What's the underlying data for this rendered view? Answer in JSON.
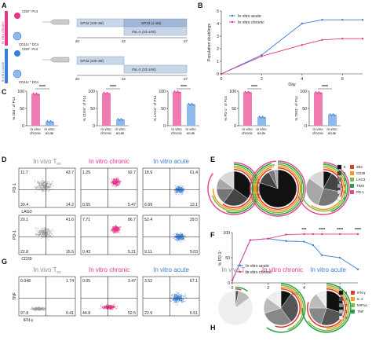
{
  "panel_labels": [
    "A",
    "B",
    "C",
    "D",
    "E",
    "F",
    "G",
    "H"
  ],
  "panel_a": {
    "rows": [
      {
        "side_label": "In vitro chronic",
        "cell1": "CD8⁺ P14",
        "cell2": "CD11c⁺ DCs",
        "bar_top_left": "GP33 (100 nM)",
        "bar_top_right": "GP33 (1 nM)",
        "bar_bottom": "rhIL-2 (10 U/ml)",
        "days": [
          "d0",
          "d2",
          "d7"
        ]
      },
      {
        "side_label": "In vitro acute",
        "cell1": "CD8⁺ P14",
        "cell2": "CD11c⁺ DCs",
        "bar_top_left": "GP33 (100 nM)",
        "bar_top_right": "",
        "bar_bottom": "rhIL-2 (10 U/ml)",
        "days": [
          "d0",
          "d2",
          "d7"
        ]
      }
    ],
    "colors": {
      "chronic": "#e6358b",
      "acute": "#3a7fd5",
      "bar_light": "#c9d7ea",
      "bar_dark": "#9fb6d6"
    }
  },
  "chart_data": [
    {
      "panel": "B",
      "type": "line",
      "xlabel": "Day",
      "ylabel": "Population doublings",
      "xlim": [
        0,
        7
      ],
      "ylim": [
        0,
        5
      ],
      "xticks": [
        0,
        2,
        4,
        6
      ],
      "yticks": [
        0,
        1,
        2,
        3,
        4,
        5
      ],
      "legend_position": "top-left",
      "series": [
        {
          "name": "In vitro acute",
          "color": "#3a7fd5",
          "x": [
            0,
            2,
            4,
            5,
            6,
            7
          ],
          "y": [
            0,
            1.5,
            4.0,
            4.3,
            4.3,
            4.3
          ]
        },
        {
          "name": "In vitro chronic",
          "color": "#e6358b",
          "x": [
            0,
            2,
            4,
            5,
            6,
            7
          ],
          "y": [
            0,
            1.4,
            2.3,
            2.7,
            2.8,
            2.8
          ]
        }
      ]
    },
    {
      "panel": "C",
      "type": "bar",
      "categories": [
        "In vitro chronic",
        "In vitro acute"
      ],
      "ylim": [
        0,
        100
      ],
      "yticks": [
        0,
        50,
        100
      ],
      "plots": [
        {
          "ylabel": "% 2B4⁺ of P14",
          "values": [
            92,
            12
          ],
          "sig": "****"
        },
        {
          "ylabel": "% CD39⁺ of P14",
          "values": [
            94,
            18
          ],
          "sig": "****"
        },
        {
          "ylabel": "% LAG3⁺ of P14",
          "values": [
            98,
            62
          ],
          "sig": "****"
        },
        {
          "ylabel": "% PD-1⁺ of P14",
          "values": [
            97,
            25
          ],
          "sig": "****"
        },
        {
          "ylabel": "% TIM3⁺ of P14",
          "values": [
            96,
            32
          ],
          "sig": "****"
        }
      ]
    },
    {
      "panel": "F",
      "type": "line",
      "xlabel": "Day",
      "ylabel": "% PD-1⁺",
      "xlim": [
        0,
        7
      ],
      "ylim": [
        0,
        100
      ],
      "xticks": [
        0,
        2,
        4,
        6
      ],
      "yticks": [
        0,
        50,
        100
      ],
      "legend_position": "bottom-left",
      "sig_marks": [
        {
          "x": 4,
          "text": "***"
        },
        {
          "x": 5,
          "text": "****"
        },
        {
          "x": 6,
          "text": "****"
        },
        {
          "x": 7,
          "text": "****"
        }
      ],
      "series": [
        {
          "name": "In vitro acute",
          "color": "#3a7fd5",
          "x": [
            0,
            1,
            2,
            3,
            4,
            4.5,
            5,
            6,
            7
          ],
          "y": [
            5,
            85,
            88,
            83,
            82,
            75,
            55,
            50,
            27
          ]
        },
        {
          "name": "In vitro chronic",
          "color": "#e6358b",
          "x": [
            0,
            1,
            2,
            3,
            4,
            4.5,
            5,
            6,
            7
          ],
          "y": [
            5,
            85,
            88,
            96,
            97,
            97,
            97,
            97,
            97
          ]
        }
      ]
    }
  ],
  "panel_d": {
    "headers": [
      {
        "text": "In vivo T",
        "sub": "ex",
        "color": "#8a8a8a"
      },
      {
        "text": "In vitro chronic",
        "sub": "",
        "color": "#e6358b"
      },
      {
        "text": "In vitro acute",
        "sub": "",
        "color": "#3a7fd5"
      }
    ],
    "rows": [
      {
        "ylabel": "PD-1",
        "xlabel": "LAG3",
        "quads": [
          [
            "11.7",
            "43.7",
            "30.4",
            "14.2"
          ],
          [
            "1.25",
            "92.7",
            "0.55",
            "5.47"
          ],
          [
            "18.9",
            "61.4",
            "6.69",
            "13.1"
          ]
        ]
      },
      {
        "ylabel": "PD-1",
        "xlabel": "CD39",
        "quads": [
          [
            "20.1",
            "41.6",
            "22.8",
            "15.5"
          ],
          [
            "7.71",
            "86.7",
            "0.43",
            "5.21"
          ],
          [
            "52.4",
            "29.5",
            "9.11",
            "9.03"
          ]
        ]
      }
    ]
  },
  "panel_e": {
    "legend": [
      {
        "label": "5",
        "color": "#111"
      },
      {
        "label": "4",
        "color": "#444"
      },
      {
        "label": "3",
        "color": "#777"
      },
      {
        "label": "2",
        "color": "#a8a8a8"
      },
      {
        "label": "1",
        "color": "#d8d8d8"
      },
      {
        "label": "0",
        "color": "#fff"
      }
    ],
    "markers": [
      {
        "label": "2B4",
        "color": "#e23a2e"
      },
      {
        "label": "CD39",
        "color": "#f29a1e"
      },
      {
        "label": "LAG3",
        "color": "#7dbb42"
      },
      {
        "label": "TIM3",
        "color": "#2e9e4a"
      },
      {
        "label": "PD-1",
        "color": "#e84b8a"
      }
    ]
  },
  "panel_g": {
    "ylabel": "TNF",
    "xlabel": "IFN-γ",
    "quads": [
      [
        "0.048",
        "1.74",
        "97.8",
        "0.41"
      ],
      [
        "0.05",
        "3.47",
        "44.8",
        "52.5"
      ],
      [
        "3.52",
        "67.1",
        "22.9",
        "6.51"
      ]
    ]
  },
  "panel_h": {
    "legend": [
      {
        "label": "4",
        "color": "#111"
      },
      {
        "label": "3",
        "color": "#555"
      },
      {
        "label": "2",
        "color": "#888"
      },
      {
        "label": "1",
        "color": "#bbb"
      },
      {
        "label": "0",
        "color": "#eee"
      }
    ],
    "markers": [
      {
        "label": "IFN-γ",
        "color": "#e23a2e"
      },
      {
        "label": "IL-2",
        "color": "#f29a1e"
      },
      {
        "label": "MIP1α",
        "color": "#7dbb42"
      },
      {
        "label": "TNF",
        "color": "#2e9e4a"
      }
    ]
  }
}
